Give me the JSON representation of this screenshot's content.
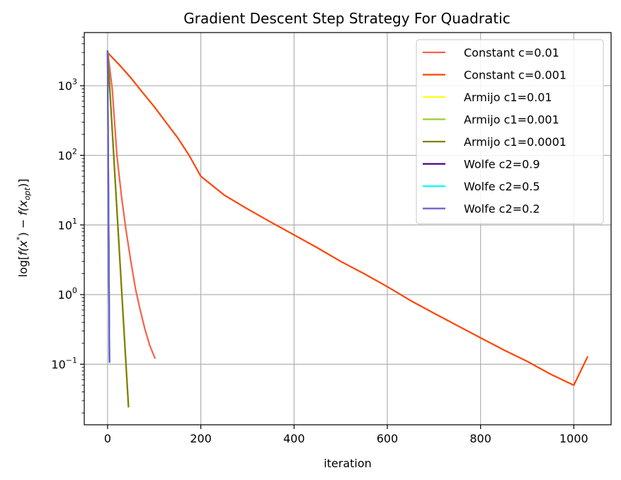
{
  "chart_data": {
    "type": "line",
    "title": "Gradient Descent Step Strategy For Quadratic",
    "xlabel": "iteration",
    "ylabel": "log[f(x*) − f(x_opt)]",
    "ylabel_parts": {
      "pre": "log[",
      "f1": "f",
      "x1": "(x",
      "sup": "*",
      "mid": ") − ",
      "f2": "f",
      "x2": "(x",
      "sub": "opt",
      "post": ")]"
    },
    "yscale": "log",
    "xlim": [
      -50,
      1080
    ],
    "ylim": [
      0.0135,
      5800
    ],
    "grid": true,
    "legend_position": "top-right",
    "x_ticks": [
      {
        "value": 0,
        "label": "0"
      },
      {
        "value": 200,
        "label": "200"
      },
      {
        "value": 400,
        "label": "400"
      },
      {
        "value": 600,
        "label": "600"
      },
      {
        "value": 800,
        "label": "800"
      },
      {
        "value": 1000,
        "label": "1000"
      }
    ],
    "y_ticks": [
      {
        "value": 0.1,
        "base": "10",
        "exp": "−1"
      },
      {
        "value": 1,
        "base": "10",
        "exp": "0"
      },
      {
        "value": 10,
        "base": "10",
        "exp": "1"
      },
      {
        "value": 100,
        "base": "10",
        "exp": "2"
      },
      {
        "value": 1000,
        "base": "10",
        "exp": "3"
      }
    ],
    "series": [
      {
        "name": "Constant c=0.01",
        "color": "#f4634a",
        "x": [
          0,
          10,
          20,
          30,
          40,
          50,
          60,
          70,
          80,
          90,
          102
        ],
        "y": [
          3200,
          900,
          100,
          25,
          8,
          3,
          1.2,
          0.6,
          0.32,
          0.19,
          0.12
        ]
      },
      {
        "name": "Constant c=0.001",
        "color": "#ff4500",
        "x": [
          0,
          25,
          50,
          75,
          100,
          125,
          150,
          175,
          200,
          250,
          300,
          350,
          400,
          450,
          500,
          550,
          600,
          650,
          700,
          750,
          800,
          850,
          900,
          950,
          1000,
          1030
        ],
        "y": [
          3000,
          2000,
          1300,
          800,
          500,
          300,
          180,
          100,
          50,
          27,
          17,
          11,
          7.2,
          4.7,
          3.0,
          2.0,
          1.3,
          0.82,
          0.54,
          0.36,
          0.24,
          0.16,
          0.11,
          0.072,
          0.05,
          0.13
        ]
      },
      {
        "name": "Armijo c1=0.01",
        "color": "#ffff14",
        "x": [
          0,
          4
        ],
        "y": [
          3200,
          0.105
        ]
      },
      {
        "name": "Armijo c1=0.001",
        "color": "#9acd32",
        "x": [
          0,
          45
        ],
        "y": [
          3200,
          0.024
        ]
      },
      {
        "name": "Armijo c1=0.0001",
        "color": "#808000",
        "x": [
          0,
          45
        ],
        "y": [
          3200,
          0.024
        ]
      },
      {
        "name": "Wolfe c2=0.9",
        "color": "#4b0082",
        "x": [
          0,
          4
        ],
        "y": [
          3200,
          0.105
        ]
      },
      {
        "name": "Wolfe c2=0.5",
        "color": "#00ffff",
        "x": [
          0,
          4
        ],
        "y": [
          3200,
          0.105
        ]
      },
      {
        "name": "Wolfe c2=0.2",
        "color": "#6a5acd",
        "x": [
          0,
          4
        ],
        "y": [
          3200,
          0.105
        ]
      }
    ]
  }
}
